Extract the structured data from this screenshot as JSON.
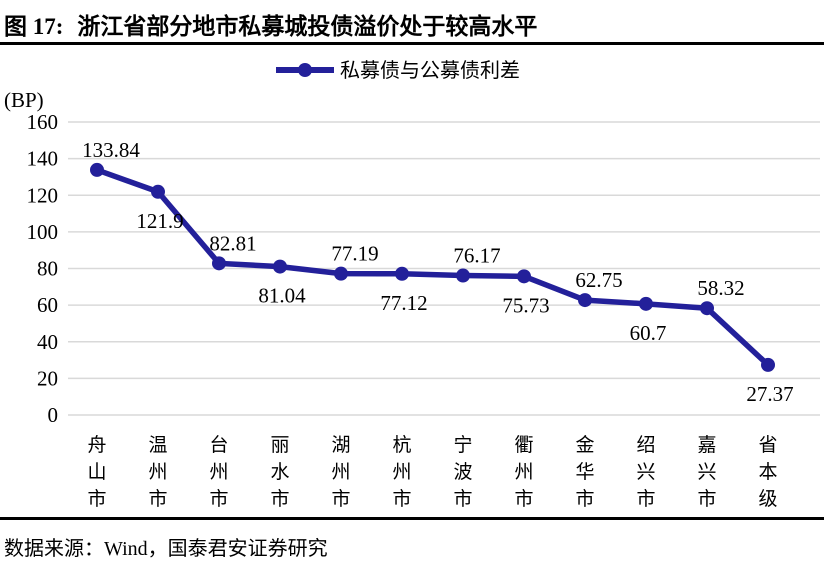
{
  "figure": {
    "title_prefix": "图 17:",
    "title_text": "浙江省部分地市私募城投债溢价处于较高水平",
    "source": "数据来源：Wind，国泰君安证券研究"
  },
  "chart_data": {
    "type": "line",
    "title": "",
    "legend": "私募债与公募债利差",
    "legend_position": "top-center",
    "unit_label": "(BP)",
    "categories": [
      "舟山市",
      "温州市",
      "台州市",
      "丽水市",
      "湖州市",
      "杭州市",
      "宁波市",
      "衢州市",
      "金华市",
      "绍兴市",
      "嘉兴市",
      "省本级"
    ],
    "series": [
      {
        "name": "私募债与公募债利差",
        "values": [
          133.84,
          121.9,
          82.81,
          81.04,
          77.19,
          77.12,
          76.17,
          75.73,
          62.75,
          60.7,
          58.32,
          27.37
        ]
      }
    ],
    "data_labels": [
      "133.84",
      "121.9",
      "82.81",
      "81.04",
      "77.19",
      "77.12",
      "76.17",
      "75.73",
      "62.75",
      "60.7",
      "58.32",
      "27.37"
    ],
    "label_positions": [
      "above",
      "below",
      "above",
      "below",
      "above",
      "below",
      "above",
      "below",
      "above",
      "below",
      "above",
      "below"
    ],
    "ylim": [
      0,
      160
    ],
    "yticks": [
      160,
      140,
      120,
      100,
      80,
      60,
      40,
      20,
      0
    ],
    "grid": "horizontal",
    "colors": {
      "series": "#23209A",
      "gridline": "#D9D9D9",
      "text": "#000000"
    }
  }
}
